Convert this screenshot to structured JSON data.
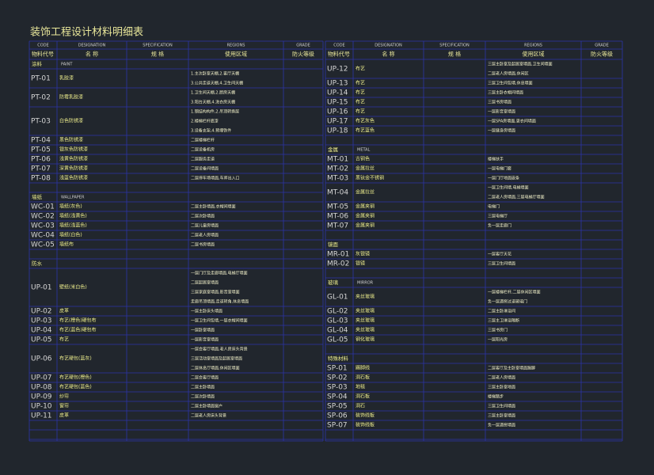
{
  "title": "装饰工程设计材料明细表",
  "headers_en": [
    "CODE",
    "DESIGNATION",
    "SPECIFICATION",
    "REGIONS",
    "GRADE"
  ],
  "headers_cn": [
    "物料代号",
    "名  称",
    "规  格",
    "使用区域",
    "防火等级"
  ],
  "left": [
    {
      "section_cn": "涂料",
      "section_en": "PAINT"
    },
    {
      "code": "PT-01",
      "name": "乳胶漆",
      "regions": [
        "1.主次卧室天棚,2.客厅天棚",
        "3.公共走道天棚,4.卫生间天棚"
      ]
    },
    {
      "code": "PT-02",
      "name": "防霉乳胶漆",
      "regions": [
        "1.卫生间天棚,2.厨房天棚",
        "3.阳台天棚,4.洗衣房天棚"
      ]
    },
    {
      "code": "PT-03",
      "name": "白色防锈漆",
      "regions": [
        "1.钢结构构件,2.吊顶转换层",
        "2.楼梯栏杆底漆",
        "3.设备支架,4.预埋铁件"
      ]
    },
    {
      "code": "PT-04",
      "name": "黑色防锈漆",
      "regions": [
        "二层楼梯栏杆"
      ]
    },
    {
      "code": "PT-05",
      "name": "银灰色防锈漆",
      "regions": [
        "二层设备机房"
      ]
    },
    {
      "code": "PT-06",
      "name": "浅黄色防锈漆",
      "regions": [
        "二层服务走道"
      ]
    },
    {
      "code": "PT-07",
      "name": "深黄色防锈漆",
      "regions": [
        "二层设备间墙面"
      ]
    },
    {
      "code": "PT-08",
      "name": "浅蓝色防锈漆",
      "regions": [
        "二层停车场墙面,车库出入口"
      ]
    },
    {
      "section_cn": "墙纸",
      "section_en": "WALLPAPER"
    },
    {
      "code": "WC-01",
      "name": "墙纸(灰色)",
      "regions": [
        "二层主卧墙面,衣帽间墙面"
      ]
    },
    {
      "code": "WC-02",
      "name": "墙纸(浅黄色)",
      "regions": [
        "二层次卧墙面"
      ]
    },
    {
      "code": "WC-03",
      "name": "墙纸(浅蓝色)",
      "regions": [
        "二层儿童房墙面"
      ]
    },
    {
      "code": "WC-04",
      "name": "墙纸(白色)",
      "regions": [
        "二层老人房墙面"
      ]
    },
    {
      "code": "WC-05",
      "name": "墙纸布",
      "regions": [
        "二层书房墙面"
      ]
    },
    {
      "section_cn": "防水"
    },
    {
      "code": "UP-01",
      "name": "壁纸(米白色)",
      "regions": [
        "一层门厅及走廊墙面,电梯厅墙面",
        "二层起居室墙面",
        "三层家庭室墙面,影音室墙面",
        "走廊吊顶墙面,走道转角,休息墙面"
      ]
    },
    {
      "code": "UP-02",
      "name": "皮革",
      "regions": [
        "一层主卧床头墙面"
      ]
    },
    {
      "code": "UP-03",
      "name": "布艺(橙色)硬包布",
      "regions": [
        "一层卫生间包墙,一层衣帽间墙面"
      ]
    },
    {
      "code": "UP-04",
      "name": "布艺(蓝色)硬包布",
      "regions": [
        "一层卧室墙面"
      ]
    },
    {
      "code": "UP-05",
      "name": "布艺",
      "regions": [
        "一层影音室墙面"
      ]
    },
    {
      "code": "UP-06",
      "name": "布艺硬包(蓝灰)",
      "regions": [
        "一层会客厅墙面,老人房床头背景",
        "三层活动室墙面及起居室墙面",
        "二层休息厅墙面,休闲区墙面"
      ]
    },
    {
      "code": "UP-07",
      "name": "布艺硬包(橙色)",
      "regions": [
        "二层会客厅墙面"
      ]
    },
    {
      "code": "UP-08",
      "name": "布艺硬包(蓝色)",
      "regions": [
        "二层主卧墙面"
      ]
    },
    {
      "code": "UP-09",
      "name": "纱帘",
      "regions": [
        "二层次卧墙面"
      ]
    },
    {
      "code": "UP-10",
      "name": "窗帘",
      "regions": [
        "二层主卧墙面窗户"
      ]
    },
    {
      "code": "UP-11",
      "name": "皮革",
      "regions": [
        "二层老人房床头背景"
      ]
    }
  ],
  "right": [
    {
      "code": "UP-12",
      "name": "布艺",
      "regions": [
        "三层主卧室及起居室墙面,卫生间墙面",
        "二层老人房墙面,休闲区"
      ]
    },
    {
      "code": "UP-13",
      "name": "布艺",
      "regions": [
        "三层卫生间包墙,休息墙面"
      ]
    },
    {
      "code": "UP-14",
      "name": "布艺",
      "regions": [
        "三层主卧衣帽间墙面"
      ]
    },
    {
      "code": "UP-15",
      "name": "布艺",
      "regions": [
        "三层书房墙面"
      ]
    },
    {
      "code": "UP-16",
      "name": "布艺",
      "regions": [
        "一层影音室墙面"
      ]
    },
    {
      "code": "UP-17",
      "name": "布艺灰色",
      "regions": [
        "一层SPA房墙面,更衣间墙面"
      ]
    },
    {
      "code": "UP-18",
      "name": "布艺蓝色",
      "regions": [
        "一层健身房墙面"
      ]
    },
    {
      "section_cn": "金属",
      "section_en": "METAL"
    },
    {
      "code": "MT-01",
      "name": "古铜色",
      "regions": [
        "楼梯扶手"
      ]
    },
    {
      "code": "MT-02",
      "name": "金属拉丝",
      "regions": [
        "一层电梯门套"
      ]
    },
    {
      "code": "MT-03",
      "name": "黑钛金不锈钢",
      "regions": [
        "一层门厅地面嵌条"
      ]
    },
    {
      "code": "MT-04",
      "name": "金属拉丝",
      "regions": [
        "一层卫生间墙,电梯墙面",
        "二层老人房墙面,三层电梯厅墙面"
      ]
    },
    {
      "code": "MT-05",
      "name": "金属夹钢",
      "regions": [
        "电梯门"
      ]
    },
    {
      "code": "MT-06",
      "name": "金属夹钢",
      "regions": [
        "三层电梯厅"
      ]
    },
    {
      "code": "MT-07",
      "name": "金属夹钢",
      "regions": [
        "负一层走廊门"
      ]
    },
    {
      "section_cn": "镜面"
    },
    {
      "code": "MR-01",
      "name": "灰银镜",
      "regions": [
        "一层客厅天花"
      ]
    },
    {
      "code": "MR-02",
      "name": "银镜",
      "regions": [
        "三层卫生间墙面"
      ]
    },
    {
      "section_cn": "玻璃",
      "section_en": "MIRROR"
    },
    {
      "code": "GL-01",
      "name": "夹丝玻璃",
      "regions": [
        "一层楼梯栏杆,二层休闲区墙面",
        "负一层酒窖过道玻璃门"
      ]
    },
    {
      "code": "GL-02",
      "name": "夹丝玻璃",
      "regions": [
        "二层主卧淋浴间"
      ]
    },
    {
      "code": "GL-03",
      "name": "夹丝玻璃",
      "regions": [
        "三层主卫淋浴隔断"
      ]
    },
    {
      "code": "GL-04",
      "name": "夹丝玻璃",
      "regions": [
        "三层书房门"
      ]
    },
    {
      "code": "GL-05",
      "name": "钢化玻璃",
      "regions": [
        "一层阳光房"
      ]
    },
    {
      "section_cn": "特殊材料"
    },
    {
      "code": "SP-01",
      "name": "踢脚线",
      "regions": [
        "二层客厅及主卧室墙面踢脚"
      ]
    },
    {
      "code": "SP-02",
      "name": "洞石板",
      "regions": [
        "二层老人房墙面"
      ]
    },
    {
      "code": "SP-03",
      "name": "地毯",
      "regions": [
        "三层主卧室地面"
      ]
    },
    {
      "code": "SP-04",
      "name": "洞石板",
      "regions": [
        "楼梯踏步"
      ]
    },
    {
      "code": "SP-05",
      "name": "洞石",
      "regions": [
        "三层卫生间墙面"
      ]
    },
    {
      "code": "SP-06",
      "name": "装饰线板",
      "regions": [
        "三层主卧室墙面"
      ]
    },
    {
      "code": "SP-07",
      "name": "装饰线板",
      "regions": [
        "负一层酒窖墙面"
      ]
    }
  ]
}
